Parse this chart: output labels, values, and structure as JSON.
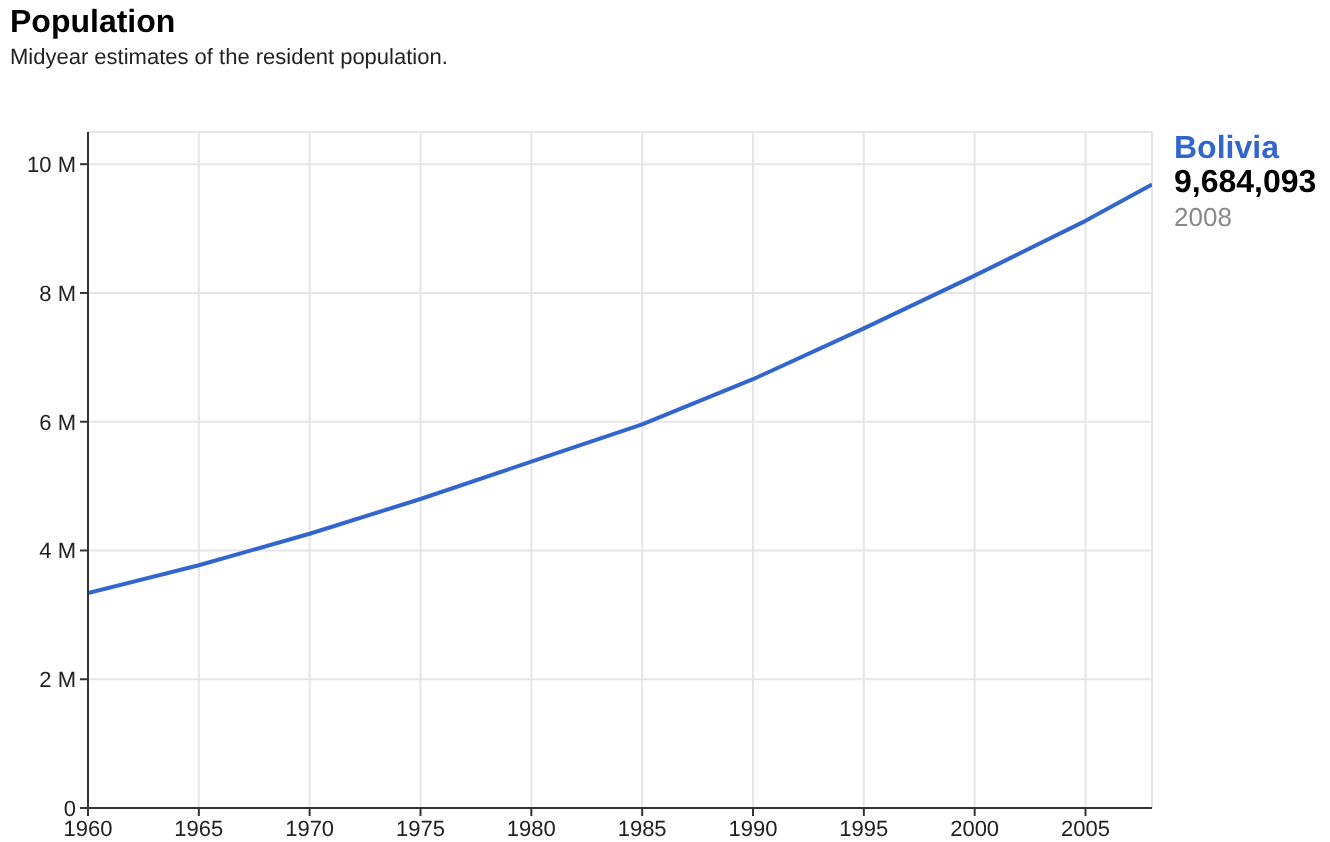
{
  "chart_data": {
    "type": "line",
    "title": "Population",
    "subtitle": "Midyear estimates of the resident population.",
    "x": [
      1960,
      1965,
      1970,
      1975,
      1980,
      1985,
      1990,
      1995,
      2000,
      2005,
      2008
    ],
    "series": [
      {
        "name": "Bolivia",
        "color": "#3366cc",
        "values": [
          3340000,
          3770000,
          4260000,
          4800000,
          5380000,
          5960000,
          6660000,
          7450000,
          8270000,
          9120000,
          9684093
        ],
        "value_labels": [
          null,
          null,
          null,
          null,
          null,
          null,
          null,
          null,
          null,
          null,
          "9,684,093"
        ]
      }
    ],
    "xlim": [
      1960,
      2008
    ],
    "xticks": [
      1960,
      1965,
      1970,
      1975,
      1980,
      1985,
      1990,
      1995,
      2000,
      2005
    ],
    "ylim": [
      0,
      10500000
    ],
    "yticks": [
      0,
      {
        "value": 2000000,
        "label": "2 M"
      },
      {
        "value": 4000000,
        "label": "4 M"
      },
      {
        "value": 6000000,
        "label": "6 M"
      },
      {
        "value": 8000000,
        "label": "8 M"
      },
      {
        "value": 10000000,
        "label": "10 M"
      }
    ],
    "grid": true,
    "marker": "none",
    "annotations": [
      "2008"
    ]
  }
}
